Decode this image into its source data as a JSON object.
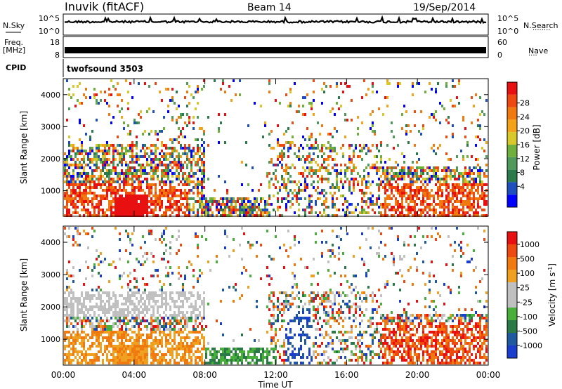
{
  "header": {
    "station": "Inuvik (fitACF)",
    "beam": "Beam 14",
    "date": "19/Sep/2014"
  },
  "noise_panel": {
    "left_label": "N.Sky",
    "left_ticks": [
      "10^5",
      "10^0"
    ],
    "right_label": "N.Search",
    "right_ticks": [
      "10^5",
      "10^0"
    ],
    "right_legend_line": "········"
  },
  "freq_panel": {
    "left_label_1": "Freq.",
    "left_label_2": "[MHz]",
    "left_ticks": [
      "18",
      "8"
    ],
    "right_label": "Nave",
    "right_ticks": [
      "60",
      "0"
    ],
    "right_legend_line": "····"
  },
  "cpid_panel": {
    "label": "CPID",
    "program": "twofsound 3503"
  },
  "x_axis": {
    "ticks": [
      "00:00",
      "04:00",
      "08:00",
      "12:00",
      "16:00",
      "20:00",
      "00:00"
    ],
    "title": "Time UT"
  },
  "chart_data": [
    {
      "type": "heatmap",
      "name": "power",
      "ylabel": "Slant Range [km]",
      "yticks": [
        "1000",
        "2000",
        "3000",
        "4000"
      ],
      "ylim": [
        200,
        4500
      ],
      "xlim_hours": [
        0,
        24
      ],
      "colorbar": {
        "label": "Power [dB]",
        "ticks": [
          "4",
          "8",
          "12",
          "16",
          "20",
          "24",
          "28"
        ],
        "colors": [
          "#0000ff",
          "#1f4fbf",
          "#2b7a4b",
          "#4f9a5a",
          "#6fb03d",
          "#d9c82a",
          "#f3a21a",
          "#f07a10",
          "#ee4a10",
          "#e81010"
        ]
      }
    },
    {
      "type": "heatmap",
      "name": "velocity",
      "ylabel": "Slant Range [km]",
      "yticks": [
        "1000",
        "2000",
        "3000",
        "4000"
      ],
      "ylim": [
        200,
        4500
      ],
      "xlim_hours": [
        0,
        24
      ],
      "colorbar": {
        "label_main": "Velocity [m s",
        "label_sup": "-1",
        "label_end": "]",
        "ticks": [
          "1000",
          "500",
          "100",
          "25",
          "-25",
          "-100",
          "-500",
          "-1000"
        ],
        "colors": [
          "#1a3ccf",
          "#1f5aa0",
          "#2a7a48",
          "#48b03a",
          "#c0c0c0",
          "#c0c0c0",
          "#f0a020",
          "#f07a10",
          "#ee4a10",
          "#e81010"
        ]
      }
    }
  ]
}
